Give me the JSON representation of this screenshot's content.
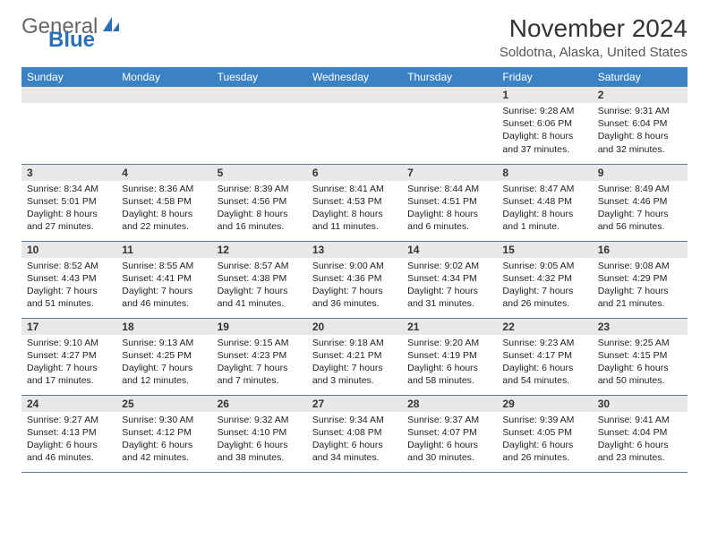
{
  "logo": {
    "text1": "General",
    "text2": "Blue"
  },
  "header": {
    "month_title": "November 2024",
    "location": "Soldotna, Alaska, United States"
  },
  "colors": {
    "header_bg": "#3b82c4",
    "header_fg": "#ffffff",
    "daynum_bg": "#e8e8e8",
    "row_border": "#5a7a9a",
    "logo_blue": "#2a70b8"
  },
  "day_headers": [
    "Sunday",
    "Monday",
    "Tuesday",
    "Wednesday",
    "Thursday",
    "Friday",
    "Saturday"
  ],
  "weeks": [
    [
      {
        "n": "",
        "sunrise": "",
        "sunset": "",
        "daylight": ""
      },
      {
        "n": "",
        "sunrise": "",
        "sunset": "",
        "daylight": ""
      },
      {
        "n": "",
        "sunrise": "",
        "sunset": "",
        "daylight": ""
      },
      {
        "n": "",
        "sunrise": "",
        "sunset": "",
        "daylight": ""
      },
      {
        "n": "",
        "sunrise": "",
        "sunset": "",
        "daylight": ""
      },
      {
        "n": "1",
        "sunrise": "Sunrise: 9:28 AM",
        "sunset": "Sunset: 6:06 PM",
        "daylight": "Daylight: 8 hours and 37 minutes."
      },
      {
        "n": "2",
        "sunrise": "Sunrise: 9:31 AM",
        "sunset": "Sunset: 6:04 PM",
        "daylight": "Daylight: 8 hours and 32 minutes."
      }
    ],
    [
      {
        "n": "3",
        "sunrise": "Sunrise: 8:34 AM",
        "sunset": "Sunset: 5:01 PM",
        "daylight": "Daylight: 8 hours and 27 minutes."
      },
      {
        "n": "4",
        "sunrise": "Sunrise: 8:36 AM",
        "sunset": "Sunset: 4:58 PM",
        "daylight": "Daylight: 8 hours and 22 minutes."
      },
      {
        "n": "5",
        "sunrise": "Sunrise: 8:39 AM",
        "sunset": "Sunset: 4:56 PM",
        "daylight": "Daylight: 8 hours and 16 minutes."
      },
      {
        "n": "6",
        "sunrise": "Sunrise: 8:41 AM",
        "sunset": "Sunset: 4:53 PM",
        "daylight": "Daylight: 8 hours and 11 minutes."
      },
      {
        "n": "7",
        "sunrise": "Sunrise: 8:44 AM",
        "sunset": "Sunset: 4:51 PM",
        "daylight": "Daylight: 8 hours and 6 minutes."
      },
      {
        "n": "8",
        "sunrise": "Sunrise: 8:47 AM",
        "sunset": "Sunset: 4:48 PM",
        "daylight": "Daylight: 8 hours and 1 minute."
      },
      {
        "n": "9",
        "sunrise": "Sunrise: 8:49 AM",
        "sunset": "Sunset: 4:46 PM",
        "daylight": "Daylight: 7 hours and 56 minutes."
      }
    ],
    [
      {
        "n": "10",
        "sunrise": "Sunrise: 8:52 AM",
        "sunset": "Sunset: 4:43 PM",
        "daylight": "Daylight: 7 hours and 51 minutes."
      },
      {
        "n": "11",
        "sunrise": "Sunrise: 8:55 AM",
        "sunset": "Sunset: 4:41 PM",
        "daylight": "Daylight: 7 hours and 46 minutes."
      },
      {
        "n": "12",
        "sunrise": "Sunrise: 8:57 AM",
        "sunset": "Sunset: 4:38 PM",
        "daylight": "Daylight: 7 hours and 41 minutes."
      },
      {
        "n": "13",
        "sunrise": "Sunrise: 9:00 AM",
        "sunset": "Sunset: 4:36 PM",
        "daylight": "Daylight: 7 hours and 36 minutes."
      },
      {
        "n": "14",
        "sunrise": "Sunrise: 9:02 AM",
        "sunset": "Sunset: 4:34 PM",
        "daylight": "Daylight: 7 hours and 31 minutes."
      },
      {
        "n": "15",
        "sunrise": "Sunrise: 9:05 AM",
        "sunset": "Sunset: 4:32 PM",
        "daylight": "Daylight: 7 hours and 26 minutes."
      },
      {
        "n": "16",
        "sunrise": "Sunrise: 9:08 AM",
        "sunset": "Sunset: 4:29 PM",
        "daylight": "Daylight: 7 hours and 21 minutes."
      }
    ],
    [
      {
        "n": "17",
        "sunrise": "Sunrise: 9:10 AM",
        "sunset": "Sunset: 4:27 PM",
        "daylight": "Daylight: 7 hours and 17 minutes."
      },
      {
        "n": "18",
        "sunrise": "Sunrise: 9:13 AM",
        "sunset": "Sunset: 4:25 PM",
        "daylight": "Daylight: 7 hours and 12 minutes."
      },
      {
        "n": "19",
        "sunrise": "Sunrise: 9:15 AM",
        "sunset": "Sunset: 4:23 PM",
        "daylight": "Daylight: 7 hours and 7 minutes."
      },
      {
        "n": "20",
        "sunrise": "Sunrise: 9:18 AM",
        "sunset": "Sunset: 4:21 PM",
        "daylight": "Daylight: 7 hours and 3 minutes."
      },
      {
        "n": "21",
        "sunrise": "Sunrise: 9:20 AM",
        "sunset": "Sunset: 4:19 PM",
        "daylight": "Daylight: 6 hours and 58 minutes."
      },
      {
        "n": "22",
        "sunrise": "Sunrise: 9:23 AM",
        "sunset": "Sunset: 4:17 PM",
        "daylight": "Daylight: 6 hours and 54 minutes."
      },
      {
        "n": "23",
        "sunrise": "Sunrise: 9:25 AM",
        "sunset": "Sunset: 4:15 PM",
        "daylight": "Daylight: 6 hours and 50 minutes."
      }
    ],
    [
      {
        "n": "24",
        "sunrise": "Sunrise: 9:27 AM",
        "sunset": "Sunset: 4:13 PM",
        "daylight": "Daylight: 6 hours and 46 minutes."
      },
      {
        "n": "25",
        "sunrise": "Sunrise: 9:30 AM",
        "sunset": "Sunset: 4:12 PM",
        "daylight": "Daylight: 6 hours and 42 minutes."
      },
      {
        "n": "26",
        "sunrise": "Sunrise: 9:32 AM",
        "sunset": "Sunset: 4:10 PM",
        "daylight": "Daylight: 6 hours and 38 minutes."
      },
      {
        "n": "27",
        "sunrise": "Sunrise: 9:34 AM",
        "sunset": "Sunset: 4:08 PM",
        "daylight": "Daylight: 6 hours and 34 minutes."
      },
      {
        "n": "28",
        "sunrise": "Sunrise: 9:37 AM",
        "sunset": "Sunset: 4:07 PM",
        "daylight": "Daylight: 6 hours and 30 minutes."
      },
      {
        "n": "29",
        "sunrise": "Sunrise: 9:39 AM",
        "sunset": "Sunset: 4:05 PM",
        "daylight": "Daylight: 6 hours and 26 minutes."
      },
      {
        "n": "30",
        "sunrise": "Sunrise: 9:41 AM",
        "sunset": "Sunset: 4:04 PM",
        "daylight": "Daylight: 6 hours and 23 minutes."
      }
    ]
  ]
}
